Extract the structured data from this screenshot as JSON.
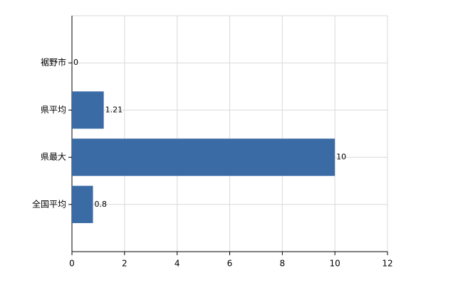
{
  "chart_data": {
    "type": "hbar",
    "categories": [
      "裾野市",
      "県平均",
      "県最大",
      "全国平均"
    ],
    "values": [
      0,
      1.21,
      10,
      0.8
    ],
    "color": "#3a6ba5",
    "xlim": [
      0,
      12
    ],
    "xticks": [
      0,
      2,
      4,
      6,
      8,
      10,
      12
    ],
    "grid": true
  }
}
